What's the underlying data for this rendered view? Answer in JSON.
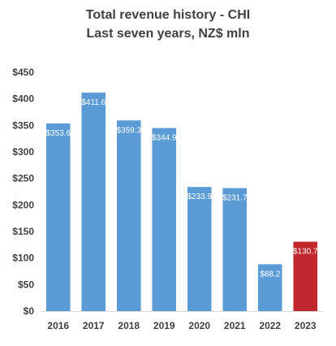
{
  "chart_data": {
    "type": "bar",
    "title": "Total revenue history - CHI",
    "subtitle": "Last seven years, NZ$ mln",
    "xlabel": "",
    "ylabel": "",
    "categories": [
      "2016",
      "2017",
      "2018",
      "2019",
      "2020",
      "2021",
      "2022",
      "2023"
    ],
    "values": [
      353.6,
      411.6,
      359.3,
      344.9,
      233.9,
      231.7,
      88.2,
      130.7
    ],
    "data_labels": [
      "$353.6",
      "$411.6",
      "$359.3",
      "$344.9",
      "$233.9",
      "$231.7",
      "$88.2",
      "$130.7"
    ],
    "bar_colors": [
      "#5b9bd5",
      "#5b9bd5",
      "#5b9bd5",
      "#5b9bd5",
      "#5b9bd5",
      "#5b9bd5",
      "#5b9bd5",
      "#c0282d"
    ],
    "ylim": [
      0,
      450
    ],
    "yticks": [
      0,
      50,
      100,
      150,
      200,
      250,
      300,
      350,
      400,
      450
    ],
    "ytick_labels": [
      "$0",
      "$50",
      "$100",
      "$150",
      "$200",
      "$250",
      "$300",
      "$350",
      "$400",
      "$450"
    ],
    "grid": false,
    "legend": "none"
  }
}
